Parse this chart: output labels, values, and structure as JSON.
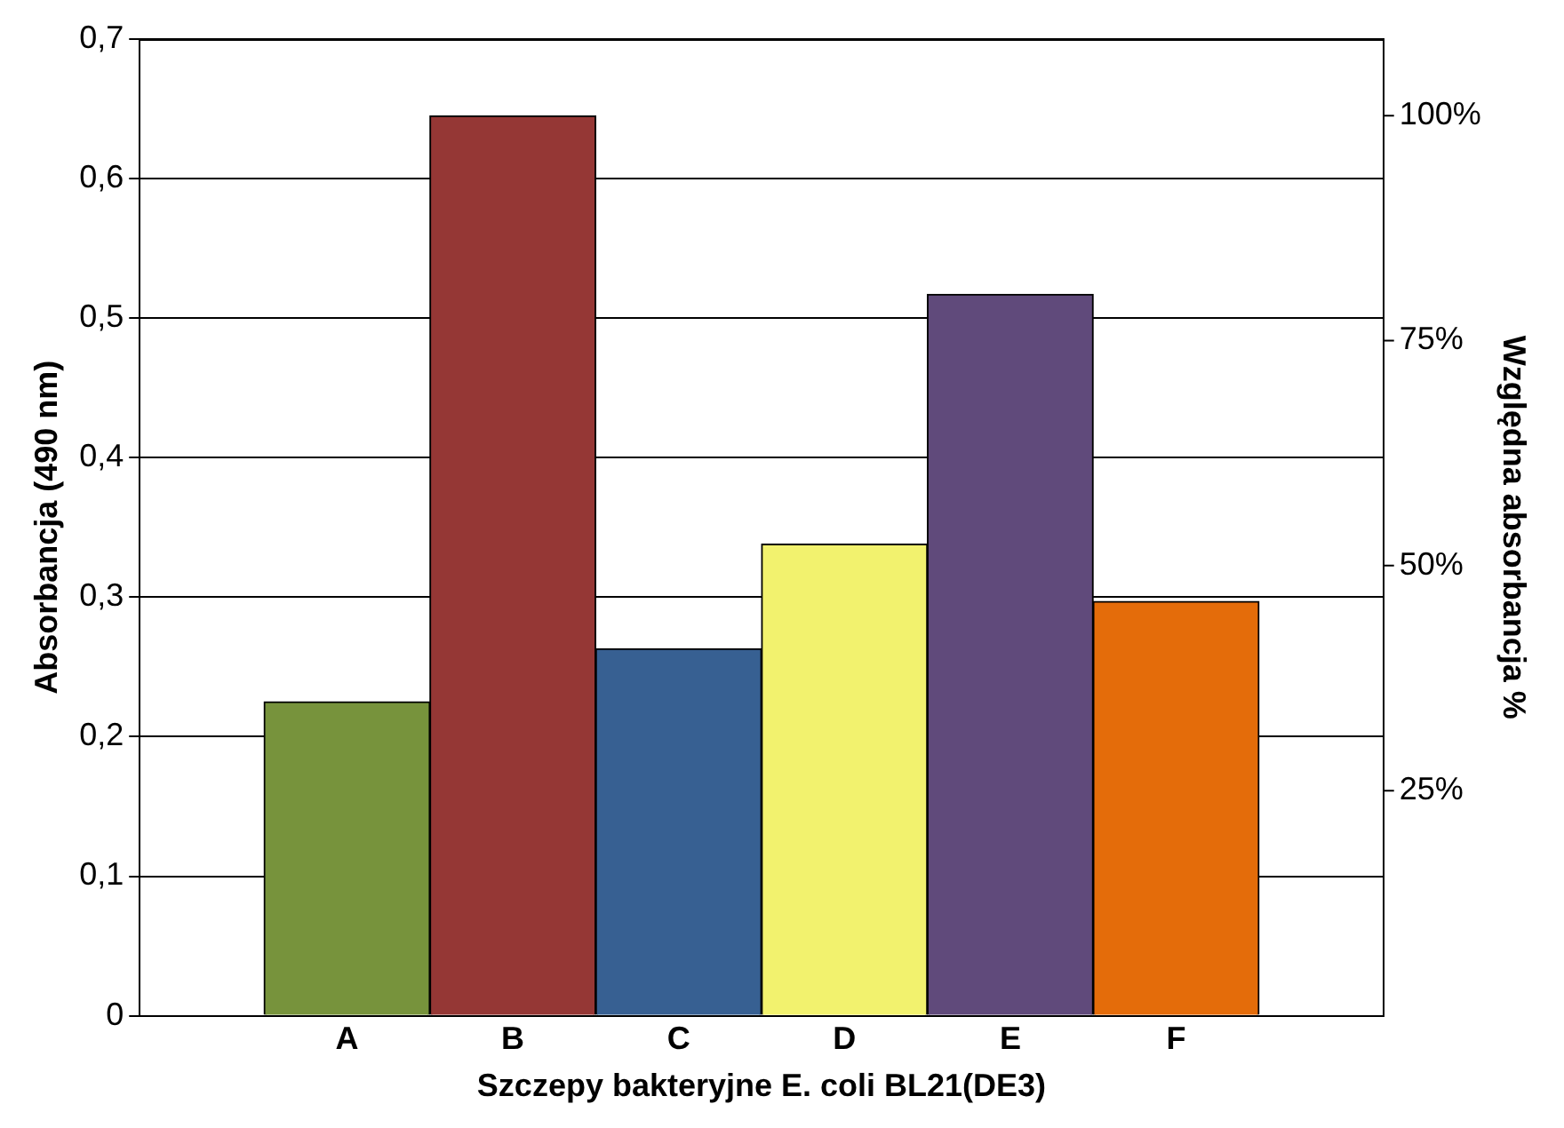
{
  "chart_data": {
    "type": "bar",
    "xlabel": "Szczepy bakteryjne E. coli BL21(DE3)",
    "ylabel": "Absorbancja (490 nm)",
    "y2label": "Względna absorbancja %",
    "categories": [
      "A",
      "B",
      "C",
      "D",
      "E",
      "F"
    ],
    "values": [
      0.225,
      0.645,
      0.263,
      0.338,
      0.517,
      0.297
    ],
    "colors": [
      "#77933c",
      "#953735",
      "#376092",
      "#f2f26e",
      "#604a7b",
      "#e46c0a"
    ],
    "ylim": [
      0,
      0.7
    ],
    "yticks": [
      {
        "value": 0,
        "label": "0"
      },
      {
        "value": 0.1,
        "label": "0,1"
      },
      {
        "value": 0.2,
        "label": "0,2"
      },
      {
        "value": 0.3,
        "label": "0,3"
      },
      {
        "value": 0.4,
        "label": "0,4"
      },
      {
        "value": 0.5,
        "label": "0,5"
      },
      {
        "value": 0.6,
        "label": "0,6"
      },
      {
        "value": 0.7,
        "label": "0,7"
      }
    ],
    "y2lim": [
      0,
      108.5
    ],
    "y2ticks": [
      {
        "value": 25,
        "label": "25%"
      },
      {
        "value": 50,
        "label": "50%"
      },
      {
        "value": 75,
        "label": "75%"
      },
      {
        "value": 100,
        "label": "100%"
      }
    ],
    "grid": "y",
    "legend": false
  }
}
